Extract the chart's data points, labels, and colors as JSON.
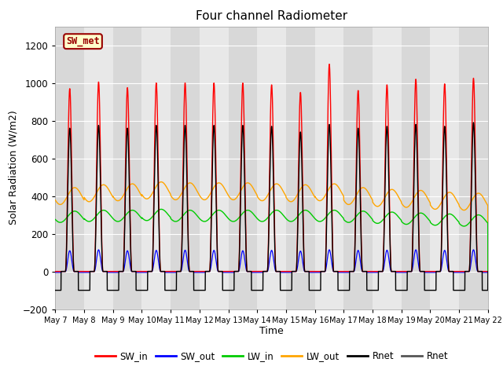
{
  "title": "Four channel Radiometer",
  "xlabel": "Time",
  "ylabel": "Solar Radiation (W/m2)",
  "ylim": [
    -200,
    1300
  ],
  "yticks": [
    -200,
    0,
    200,
    400,
    600,
    800,
    1000,
    1200
  ],
  "xtick_labels": [
    "May 7",
    "May 8",
    "May 9",
    "May 10",
    "May 11",
    "May 12",
    "May 13",
    "May 14",
    "May 15",
    "May 16",
    "May 17",
    "May 18",
    "May 19",
    "May 20",
    "May 21",
    "May 22"
  ],
  "num_days": 15,
  "legend_entries": [
    "SW_in",
    "SW_out",
    "LW_in",
    "LW_out",
    "Rnet",
    "Rnet"
  ],
  "legend_colors": [
    "#ff0000",
    "#0000ff",
    "#00cc00",
    "#ffa500",
    "#000000",
    "#555555"
  ],
  "SW_met_label": "SW_met",
  "SW_met_bg": "#ffffcc",
  "SW_met_border": "#990000",
  "SW_met_text_color": "#990000",
  "bg_color": "#d8d8d8",
  "stripe_color": "#c8c8c8",
  "grid_color": "#ffffff",
  "sw_in_peaks": [
    970,
    1005,
    975,
    1000,
    1000,
    1000,
    1000,
    990,
    950,
    1100,
    960,
    990,
    1020,
    995,
    1025
  ],
  "sw_out_peaks": [
    110,
    115,
    110,
    112,
    113,
    112,
    110,
    112,
    108,
    115,
    112,
    113,
    115,
    112,
    115
  ],
  "lw_in_base": [
    290,
    295,
    295,
    300,
    295,
    295,
    295,
    295,
    295,
    295,
    290,
    285,
    280,
    275,
    270
  ],
  "lw_in_amp": [
    30,
    30,
    30,
    30,
    30,
    30,
    30,
    30,
    30,
    30,
    30,
    30,
    30,
    30,
    30
  ],
  "lw_out_base": [
    400,
    415,
    420,
    430,
    425,
    425,
    425,
    420,
    415,
    420,
    400,
    390,
    385,
    375,
    370
  ],
  "lw_out_amp": [
    45,
    45,
    45,
    45,
    45,
    45,
    45,
    45,
    45,
    45,
    45,
    45,
    45,
    45,
    45
  ],
  "rnet_peaks": [
    760,
    775,
    760,
    775,
    775,
    775,
    775,
    770,
    740,
    780,
    760,
    770,
    780,
    770,
    790
  ],
  "rnet_night": -100
}
